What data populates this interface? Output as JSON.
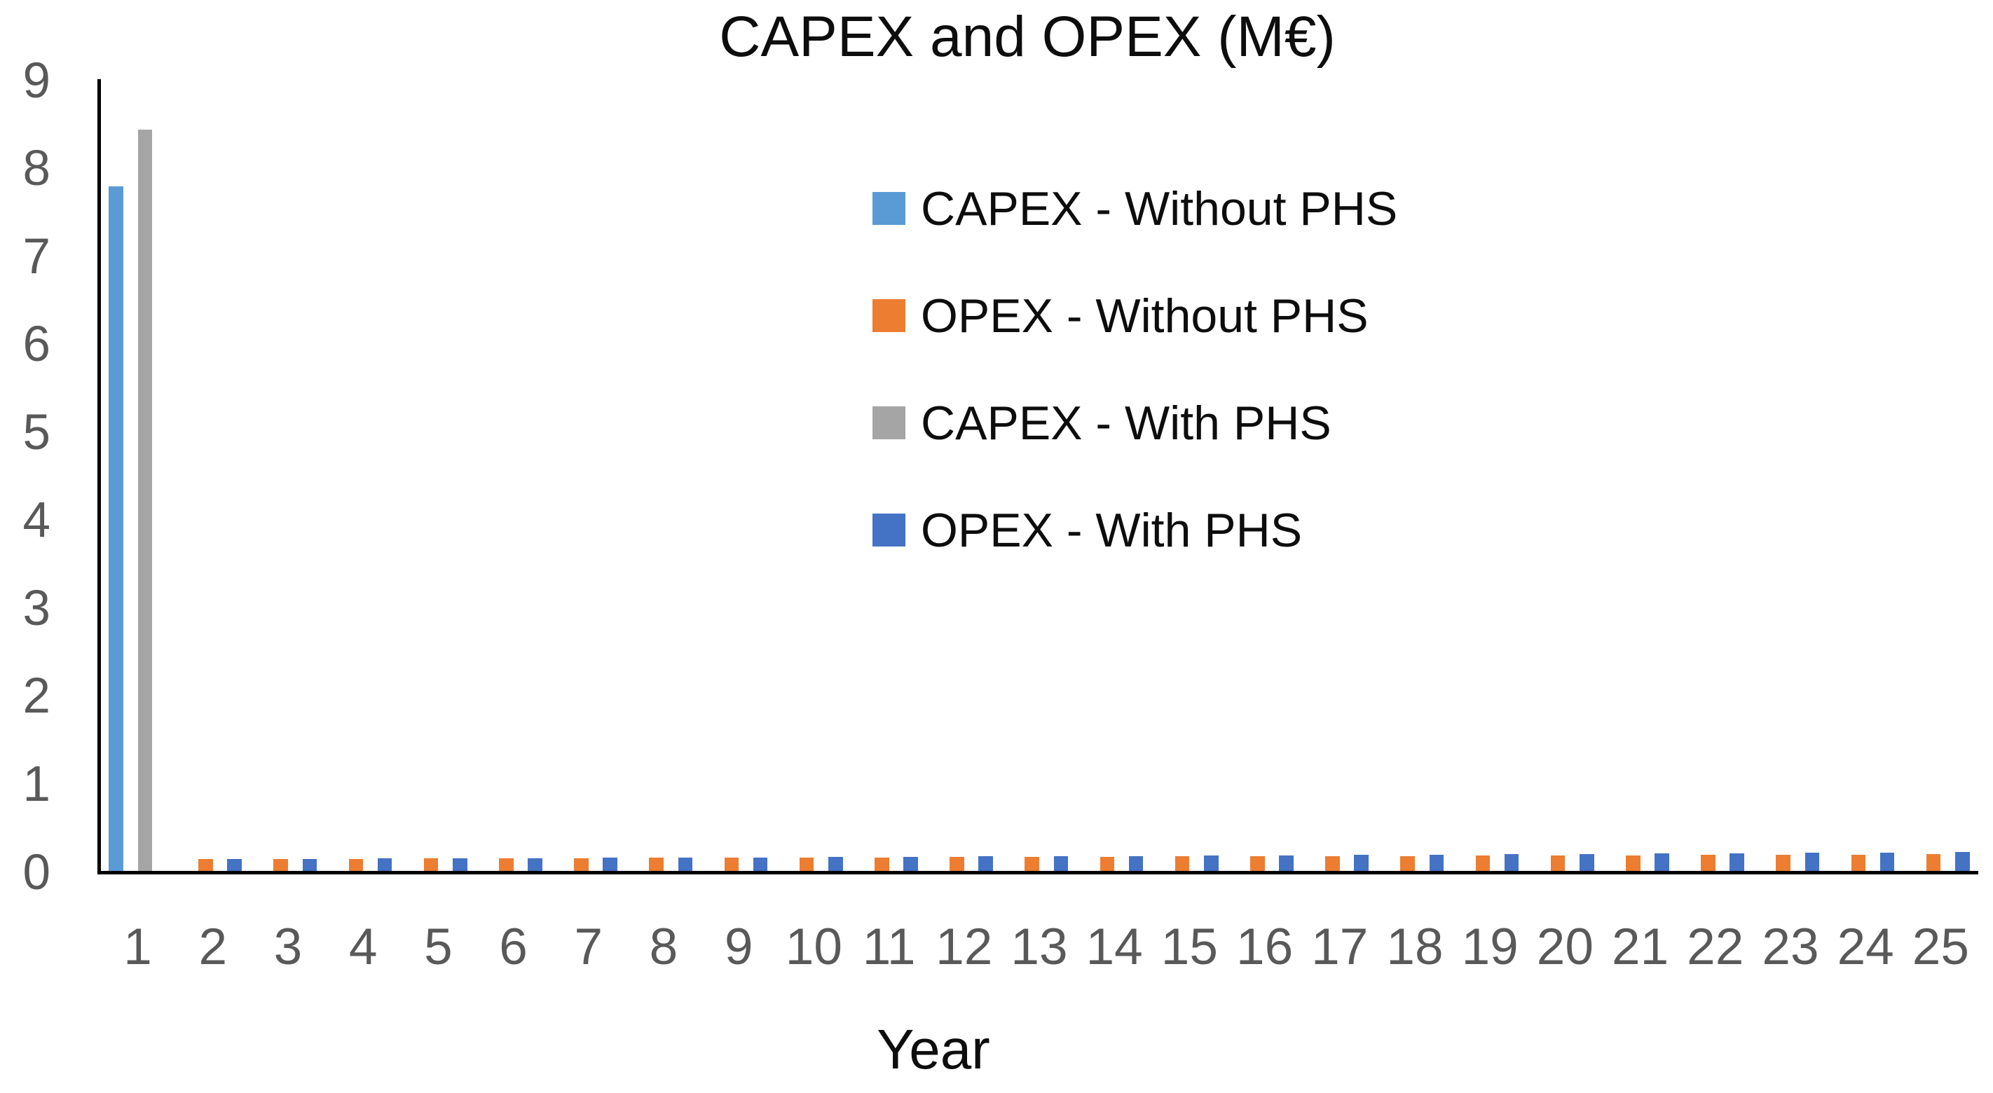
{
  "chart_data": {
    "type": "bar",
    "title": "CAPEX and OPEX (M€)",
    "xlabel": "Year",
    "ylabel": "",
    "ylim": [
      0,
      9
    ],
    "ytick_step": 1,
    "yticks": [
      0,
      1,
      2,
      3,
      4,
      5,
      6,
      7,
      8,
      9
    ],
    "grid": false,
    "legend_position": "inside upper right, vertical",
    "categories": [
      1,
      2,
      3,
      4,
      5,
      6,
      7,
      8,
      9,
      10,
      11,
      12,
      13,
      14,
      15,
      16,
      17,
      18,
      19,
      20,
      21,
      22,
      23,
      24,
      25
    ],
    "series": [
      {
        "name": "CAPEX - Without PHS",
        "color": "#5B9BD5",
        "values": [
          7.78,
          0,
          0,
          0,
          0,
          0,
          0,
          0,
          0,
          0,
          0,
          0,
          0,
          0,
          0,
          0,
          0,
          0,
          0,
          0,
          0,
          0,
          0,
          0,
          0
        ]
      },
      {
        "name": "OPEX - Without PHS",
        "color": "#ED7D31",
        "values": [
          0,
          0.135,
          0.137,
          0.139,
          0.141,
          0.143,
          0.145,
          0.148,
          0.15,
          0.152,
          0.154,
          0.157,
          0.159,
          0.161,
          0.164,
          0.166,
          0.169,
          0.171,
          0.174,
          0.177,
          0.179,
          0.182,
          0.185,
          0.187,
          0.19
        ]
      },
      {
        "name": "CAPEX - With PHS",
        "color": "#A5A5A5",
        "values": [
          8.43,
          0,
          0,
          0,
          0,
          0,
          0,
          0,
          0,
          0,
          0,
          0,
          0,
          0,
          0,
          0,
          0,
          0,
          0,
          0,
          0,
          0,
          0,
          0,
          0
        ]
      },
      {
        "name": "OPEX - With PHS",
        "color": "#4472C4",
        "values": [
          0,
          0.135,
          0.138,
          0.14,
          0.143,
          0.146,
          0.149,
          0.152,
          0.155,
          0.158,
          0.161,
          0.165,
          0.168,
          0.171,
          0.175,
          0.178,
          0.182,
          0.185,
          0.189,
          0.193,
          0.197,
          0.201,
          0.205,
          0.209,
          0.213
        ]
      }
    ],
    "axis_colors": {
      "axis_line": "#000000",
      "tick_text": "#595959",
      "title_text": "#0d0d0d",
      "legend_text": "#0d0d0d"
    }
  }
}
